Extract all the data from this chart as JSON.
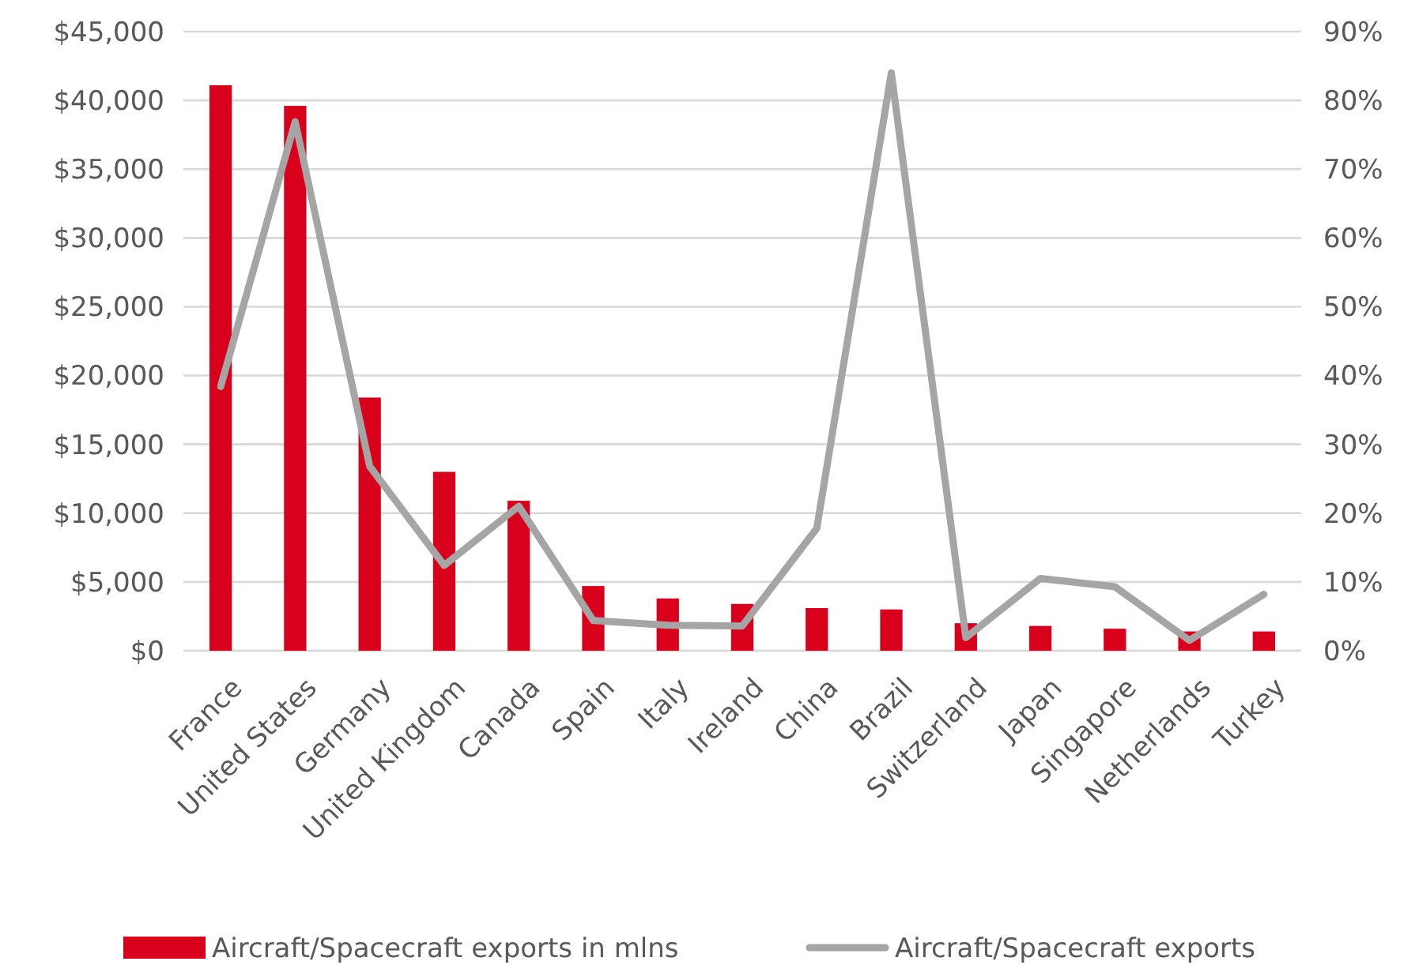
{
  "chart_data": {
    "type": "bar",
    "categories": [
      "France",
      "United States",
      "Germany",
      "United Kingdom",
      "Canada",
      "Spain",
      "Italy",
      "Ireland",
      "China",
      "Brazil",
      "Switzerland",
      "Japan",
      "Singapore",
      "Netherlands",
      "Turkey"
    ],
    "series": [
      {
        "name": "Aircraft/Spacecraft exports in mlns",
        "color": "#d9001b",
        "values": [
          41100,
          39600,
          18400,
          13000,
          10900,
          4700,
          3800,
          3400,
          3100,
          3000,
          2000,
          1800,
          1600,
          1400,
          1400
        ]
      },
      {
        "name": "Aircraft/Spacecraft exports",
        "type": "line",
        "axis": "y2",
        "color": "#a5a5a5",
        "values": [
          38.4,
          76.9,
          26.8,
          12.4,
          21.0,
          4.4,
          3.7,
          3.6,
          17.8,
          84.0,
          1.9,
          10.5,
          9.3,
          1.5,
          8.2
        ]
      }
    ],
    "ylim": [
      0,
      45000
    ],
    "yticks": [
      {
        "value": 0,
        "label": "$0"
      },
      {
        "value": 5000,
        "label": "$5,000"
      },
      {
        "value": 10000,
        "label": "$10,000"
      },
      {
        "value": 15000,
        "label": "$15,000"
      },
      {
        "value": 20000,
        "label": "$20,000"
      },
      {
        "value": 25000,
        "label": "$25,000"
      },
      {
        "value": 30000,
        "label": "$30,000"
      },
      {
        "value": 35000,
        "label": "$35,000"
      },
      {
        "value": 40000,
        "label": "$40,000"
      },
      {
        "value": 45000,
        "label": "$45,000"
      }
    ],
    "y2lim": [
      0,
      90
    ],
    "y2ticks": [
      {
        "value": 0,
        "label": "0%"
      },
      {
        "value": 10,
        "label": "10%"
      },
      {
        "value": 20,
        "label": "20%"
      },
      {
        "value": 30,
        "label": "30%"
      },
      {
        "value": 40,
        "label": "40%"
      },
      {
        "value": 50,
        "label": "50%"
      },
      {
        "value": 60,
        "label": "60%"
      },
      {
        "value": 70,
        "label": "70%"
      },
      {
        "value": 80,
        "label": "80%"
      },
      {
        "value": 90,
        "label": "90%"
      }
    ],
    "grid": "y",
    "legend": "bottom",
    "line_style": "solid",
    "marker": "none"
  }
}
